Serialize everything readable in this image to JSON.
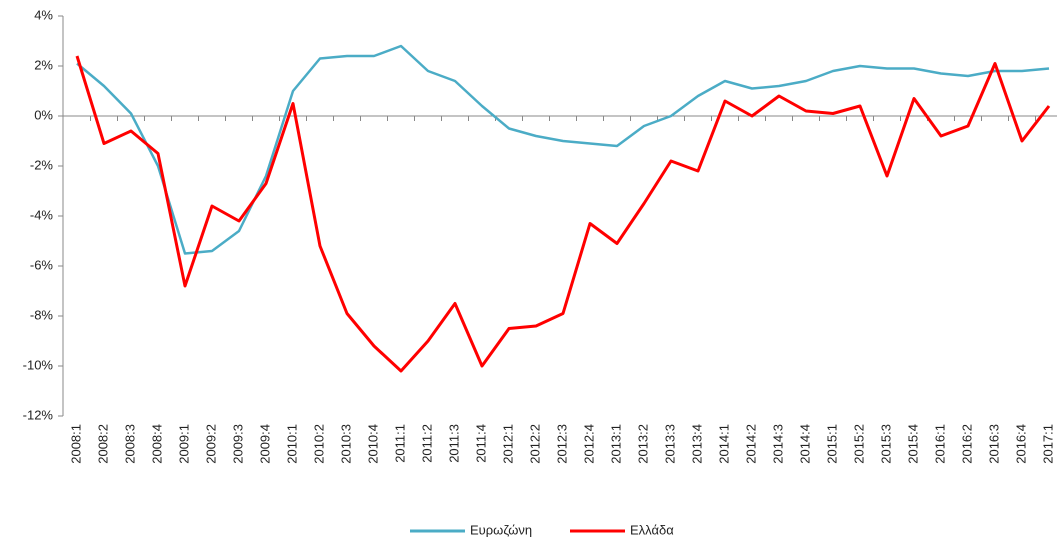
{
  "chart_data": {
    "type": "line",
    "categories": [
      "2008:1",
      "2008:2",
      "2008:3",
      "2008:4",
      "2009:1",
      "2009:2",
      "2009:3",
      "2009:4",
      "2010:1",
      "2010:2",
      "2010:3",
      "2010:4",
      "2011:1",
      "2011:2",
      "2011:3",
      "2011:4",
      "2012:1",
      "2012:2",
      "2012:3",
      "2012:4",
      "2013:1",
      "2013:2",
      "2013:3",
      "2013:4",
      "2014:1",
      "2014:2",
      "2014:3",
      "2014:4",
      "2015:1",
      "2015:2",
      "2015:3",
      "2015:4",
      "2016:1",
      "2016:2",
      "2016:3",
      "2016:4",
      "2017:1"
    ],
    "series": [
      {
        "name": "Ευρωζώνη",
        "color": "#4bacc6",
        "values": [
          2.1,
          1.2,
          0.1,
          -2.0,
          -5.5,
          -5.4,
          -4.6,
          -2.4,
          1.0,
          2.3,
          2.4,
          2.4,
          2.8,
          1.8,
          1.4,
          0.4,
          -0.5,
          -0.8,
          -1.0,
          -1.1,
          -1.2,
          -0.4,
          0.0,
          0.8,
          1.4,
          1.1,
          1.2,
          1.4,
          1.8,
          2.0,
          1.9,
          1.9,
          1.7,
          1.6,
          1.8,
          1.8,
          1.9
        ]
      },
      {
        "name": "Ελλάδα",
        "color": "#ff0000",
        "values": [
          2.4,
          -1.1,
          -0.6,
          -1.5,
          -6.8,
          -3.6,
          -4.2,
          -2.7,
          0.5,
          -5.2,
          -7.9,
          -9.2,
          -10.2,
          -9.0,
          -7.5,
          -10.0,
          -8.5,
          -8.4,
          -7.9,
          -4.3,
          -5.1,
          -3.5,
          -1.8,
          -2.2,
          0.6,
          0.0,
          0.8,
          0.2,
          0.1,
          0.4,
          -2.4,
          0.7,
          -0.8,
          -0.4,
          2.1,
          -1.0,
          0.4
        ]
      }
    ],
    "ylim": [
      -12,
      4
    ],
    "yticks": [
      {
        "value": -12,
        "label": "-12%"
      },
      {
        "value": -10,
        "label": "-10%"
      },
      {
        "value": -8,
        "label": "-8%"
      },
      {
        "value": -6,
        "label": "-6%"
      },
      {
        "value": -4,
        "label": "-4%"
      },
      {
        "value": -2,
        "label": "-2%"
      },
      {
        "value": 0,
        "label": "0%"
      },
      {
        "value": 2,
        "label": "2%"
      },
      {
        "value": 4,
        "label": "4%"
      }
    ],
    "legend": "bottom"
  }
}
